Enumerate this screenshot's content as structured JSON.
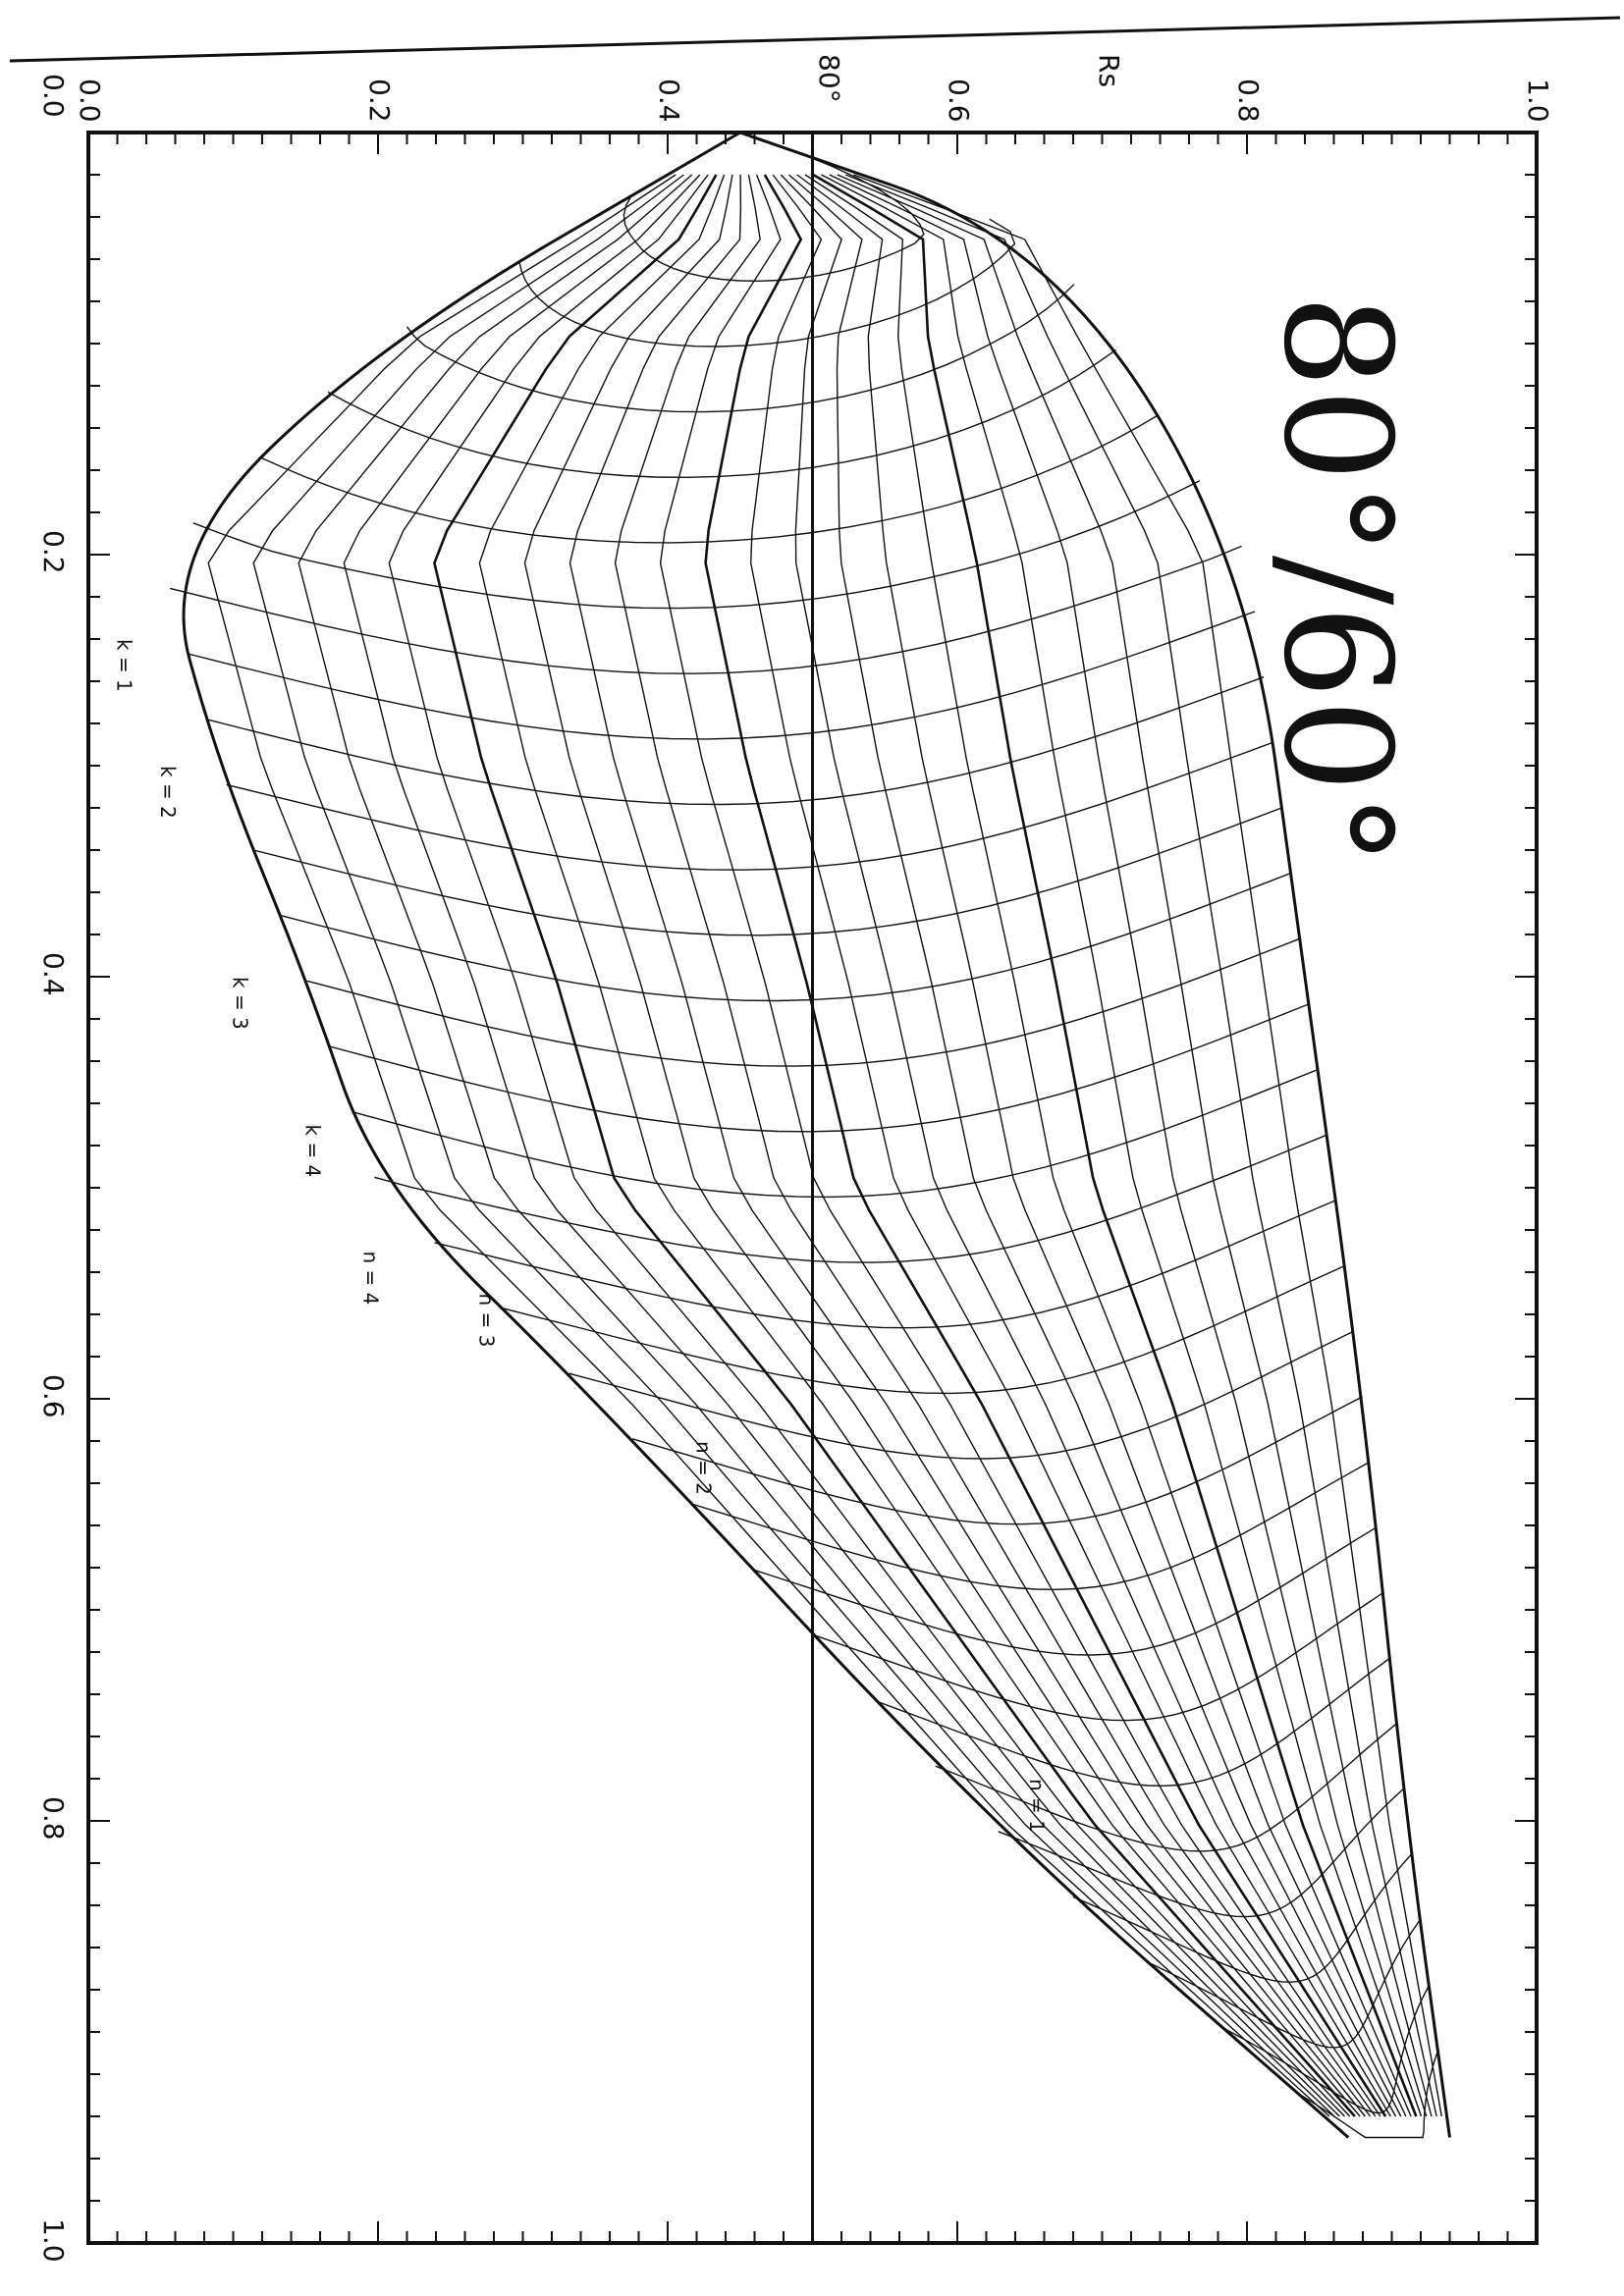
{
  "chart_data": {
    "type": "line",
    "title": "80°/60°",
    "left_axis": {
      "label": "",
      "range": [
        0.0,
        1.0
      ],
      "ticks": [
        "0.0",
        "0.2",
        "0.4",
        "0.6",
        "0.8",
        "1.0"
      ]
    },
    "top_axis": {
      "label": "Rs",
      "range": [
        0.0,
        1.0
      ],
      "ticks": [
        "0.0",
        "0.2",
        "0.4",
        "0.6",
        "0.8",
        "1.0"
      ],
      "extra_label": "80°",
      "extra_value": 0.5
    },
    "bottom_axis": {
      "range": [
        0.0,
        1.0
      ],
      "ticks": [
        "0.2",
        "0.4",
        "0.6",
        "0.8",
        "1.0"
      ]
    },
    "envelope": {
      "outer": [
        [
          0.0,
          0.45
        ],
        [
          0.05,
          0.66
        ],
        [
          0.2,
          0.8
        ],
        [
          0.4,
          0.84
        ],
        [
          0.6,
          0.88
        ],
        [
          0.8,
          0.91
        ],
        [
          0.95,
          0.94
        ]
      ],
      "inner": [
        [
          0.0,
          0.45
        ],
        [
          0.1,
          0.2
        ],
        [
          0.2,
          0.05
        ],
        [
          0.3,
          0.09
        ],
        [
          0.4,
          0.15
        ],
        [
          0.5,
          0.2
        ],
        [
          0.6,
          0.35
        ],
        [
          0.8,
          0.62
        ],
        [
          0.95,
          0.87
        ]
      ]
    },
    "series": [
      {
        "name": "k = 1",
        "label_at": [
          0.24,
          0.02
        ]
      },
      {
        "name": "k = 2",
        "label_at": [
          0.3,
          0.05
        ]
      },
      {
        "name": "k = 3",
        "label_at": [
          0.4,
          0.1
        ]
      },
      {
        "name": "k = 4",
        "label_at": [
          0.47,
          0.15
        ]
      },
      {
        "name": "n = 4",
        "label_at": [
          0.53,
          0.19
        ]
      },
      {
        "name": "n = 3",
        "label_at": [
          0.55,
          0.27
        ]
      },
      {
        "name": "n = 2",
        "label_at": [
          0.62,
          0.42
        ]
      },
      {
        "name": "n = 1",
        "label_at": [
          0.78,
          0.65
        ]
      }
    ],
    "reference_line": {
      "top_value": 0.5,
      "label": "80°"
    },
    "grid": false
  }
}
